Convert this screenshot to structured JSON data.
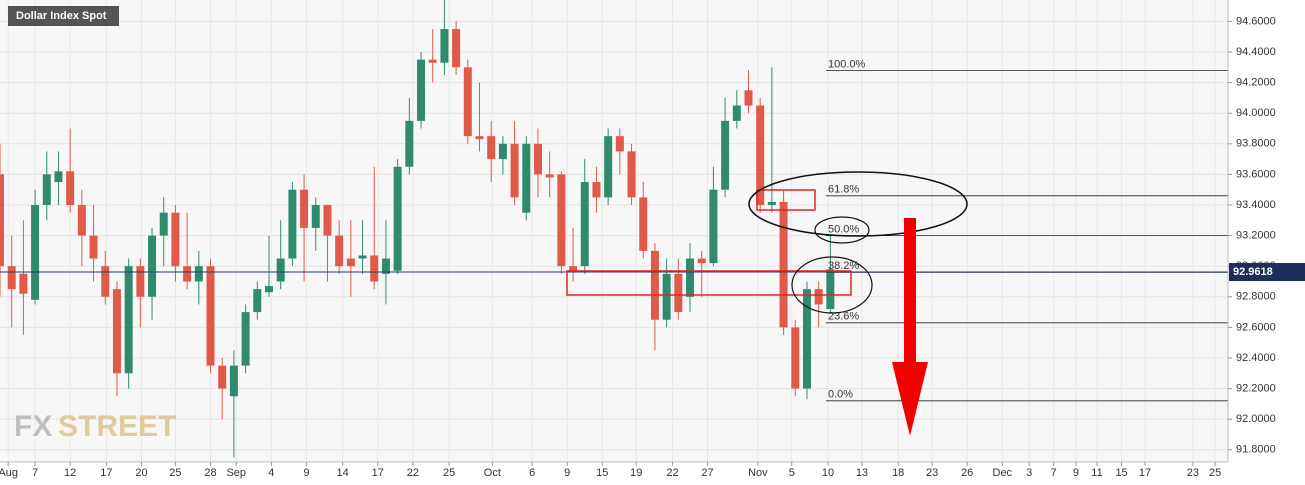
{
  "chart_data": {
    "type": "candlestick",
    "title": "Dollar Index Spot",
    "logo": {
      "prefix": "FX",
      "suffix": "STREET"
    },
    "up_color": "#2f8a6e",
    "down_color": "#e05a4a",
    "grid": true,
    "open": [
      93.6,
      93.0,
      92.95,
      92.78,
      93.4,
      93.55,
      93.62,
      93.4,
      93.2,
      93.0,
      92.85,
      92.3,
      93.0,
      92.8,
      93.2,
      93.35,
      93.0,
      92.9,
      93.0,
      92.35,
      92.15,
      92.35,
      92.7,
      92.83,
      92.9,
      93.05,
      93.5,
      93.25,
      93.4,
      93.2,
      93.05,
      93.05,
      93.07,
      92.95,
      92.97,
      93.65,
      93.95,
      94.35,
      94.33,
      94.55,
      94.3,
      93.85,
      93.85,
      93.7,
      93.8,
      93.35,
      93.8,
      93.6,
      93.6,
      93.0,
      93.0,
      93.55,
      93.45,
      93.85,
      93.75,
      93.45,
      93.1,
      92.65,
      92.95,
      92.8,
      93.05,
      93.02,
      93.5,
      93.95,
      94.15,
      94.05,
      93.4,
      93.42,
      92.6,
      92.2,
      92.85,
      92.72
    ],
    "high": [
      93.8,
      93.2,
      93.3,
      93.5,
      93.75,
      93.75,
      93.9,
      93.5,
      93.4,
      93.1,
      92.9,
      93.05,
      93.05,
      93.25,
      93.45,
      93.4,
      93.35,
      93.1,
      93.05,
      92.4,
      92.45,
      92.75,
      92.9,
      93.2,
      93.3,
      93.55,
      93.6,
      93.45,
      93.4,
      93.3,
      93.3,
      93.3,
      93.65,
      93.3,
      93.7,
      94.1,
      94.4,
      94.55,
      94.75,
      94.6,
      94.35,
      94.2,
      93.95,
      93.85,
      93.95,
      93.85,
      93.9,
      93.75,
      93.62,
      93.25,
      93.7,
      93.65,
      93.9,
      93.9,
      93.8,
      93.55,
      93.15,
      93.05,
      93.05,
      93.15,
      93.1,
      93.65,
      94.1,
      94.15,
      94.28,
      94.1,
      94.3,
      93.5,
      92.65,
      92.9,
      92.9,
      93.2
    ],
    "low": [
      92.8,
      92.6,
      92.55,
      92.75,
      93.3,
      93.4,
      93.35,
      93.0,
      92.9,
      92.75,
      92.15,
      92.2,
      92.6,
      92.65,
      93.0,
      92.9,
      92.85,
      92.75,
      92.3,
      92.0,
      91.75,
      92.3,
      92.65,
      92.8,
      92.85,
      93.0,
      92.9,
      93.1,
      92.9,
      92.95,
      92.8,
      92.95,
      92.85,
      92.75,
      92.95,
      93.6,
      93.9,
      94.2,
      94.25,
      94.25,
      93.8,
      93.75,
      93.55,
      93.6,
      93.4,
      93.3,
      93.45,
      93.45,
      92.95,
      92.9,
      92.95,
      93.35,
      93.4,
      93.6,
      93.4,
      93.05,
      92.45,
      92.6,
      92.65,
      92.7,
      92.8,
      93.0,
      93.45,
      93.9,
      94.0,
      93.35,
      93.35,
      92.55,
      92.15,
      92.13,
      92.6,
      92.7
    ],
    "close": [
      93.0,
      92.85,
      92.82,
      93.4,
      93.6,
      93.62,
      93.4,
      93.2,
      93.05,
      92.8,
      92.3,
      93.0,
      92.8,
      93.2,
      93.35,
      93.0,
      92.9,
      93.0,
      92.35,
      92.2,
      92.35,
      92.7,
      92.85,
      92.87,
      93.05,
      93.5,
      93.25,
      93.4,
      93.2,
      93.0,
      93.0,
      93.07,
      92.9,
      93.05,
      93.65,
      93.95,
      94.35,
      94.33,
      94.55,
      94.3,
      93.85,
      93.83,
      93.7,
      93.8,
      93.45,
      93.8,
      93.6,
      93.58,
      93.0,
      92.97,
      93.55,
      93.45,
      93.85,
      93.75,
      93.45,
      93.1,
      92.65,
      92.95,
      92.7,
      93.05,
      93.02,
      93.5,
      93.95,
      94.05,
      94.05,
      93.4,
      93.42,
      92.6,
      92.2,
      92.85,
      92.75,
      92.98
    ],
    "xlim": [
      0,
      105
    ],
    "xticks": [
      {
        "value": 0.7,
        "label": "Aug"
      },
      {
        "value": 3,
        "label": "7"
      },
      {
        "value": 6,
        "label": "12"
      },
      {
        "value": 9.1,
        "label": "17"
      },
      {
        "value": 12.1,
        "label": "20"
      },
      {
        "value": 15,
        "label": "25"
      },
      {
        "value": 18,
        "label": "28"
      },
      {
        "value": 20.2,
        "label": "Sep"
      },
      {
        "value": 23.2,
        "label": "4"
      },
      {
        "value": 26.2,
        "label": "9"
      },
      {
        "value": 29.3,
        "label": "14"
      },
      {
        "value": 32.3,
        "label": "17"
      },
      {
        "value": 35.3,
        "label": "22"
      },
      {
        "value": 38.4,
        "label": "25"
      },
      {
        "value": 42.1,
        "label": "Oct"
      },
      {
        "value": 45.5,
        "label": "6"
      },
      {
        "value": 48.5,
        "label": "9"
      },
      {
        "value": 51.5,
        "label": "15"
      },
      {
        "value": 54.4,
        "label": "19"
      },
      {
        "value": 57.5,
        "label": "22"
      },
      {
        "value": 60.5,
        "label": "27"
      },
      {
        "value": 64.8,
        "label": "Nov"
      },
      {
        "value": 67.7,
        "label": "5"
      },
      {
        "value": 70.8,
        "label": "10"
      },
      {
        "value": 73.7,
        "label": "13"
      },
      {
        "value": 76.8,
        "label": "18"
      },
      {
        "value": 79.7,
        "label": "23"
      },
      {
        "value": 82.7,
        "label": "26"
      },
      {
        "value": 85.7,
        "label": "Dec"
      },
      {
        "value": 88,
        "label": "3"
      },
      {
        "value": 90.1,
        "label": "7"
      },
      {
        "value": 92,
        "label": "9"
      },
      {
        "value": 93.8,
        "label": "11"
      },
      {
        "value": 95.9,
        "label": "15"
      },
      {
        "value": 97.9,
        "label": "17"
      },
      {
        "value": 102,
        "label": "23"
      },
      {
        "value": 103.9,
        "label": "25"
      }
    ],
    "ylim": [
      91.72,
      94.74
    ],
    "yticks": [
      {
        "value": 91.8,
        "label": "91.8000"
      },
      {
        "value": 92.0,
        "label": "92.0000"
      },
      {
        "value": 92.2,
        "label": "92.2000"
      },
      {
        "value": 92.4,
        "label": "92.4000"
      },
      {
        "value": 92.6,
        "label": "92.6000"
      },
      {
        "value": 92.8,
        "label": "92.8000"
      },
      {
        "value": 93.0,
        "label": "93.0000"
      },
      {
        "value": 93.2,
        "label": "93.2000"
      },
      {
        "value": 93.4,
        "label": "93.4000"
      },
      {
        "value": 93.6,
        "label": "93.6000"
      },
      {
        "value": 93.8,
        "label": "93.8000"
      },
      {
        "value": 94.0,
        "label": "94.0000"
      },
      {
        "value": 94.2,
        "label": "94.2000"
      },
      {
        "value": 94.4,
        "label": "94.4000"
      },
      {
        "value": 94.6,
        "label": "94.6000"
      }
    ],
    "last_price": 92.9618,
    "fib_levels": [
      {
        "label": "100.0%",
        "value": 94.28
      },
      {
        "label": "61.8%",
        "value": 93.46
      },
      {
        "label": "50.0%",
        "value": 93.2
      },
      {
        "label": "38.2%",
        "value": 92.96
      },
      {
        "label": "23.6%",
        "value": 92.63
      },
      {
        "label": "0.0%",
        "value": 92.12
      }
    ]
  }
}
